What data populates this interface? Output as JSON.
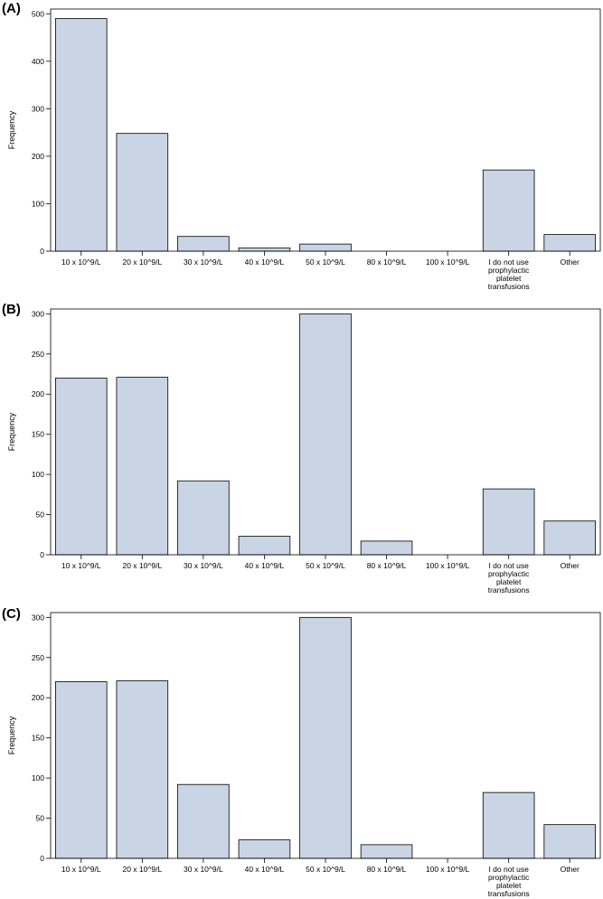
{
  "chart_data": [
    {
      "type": "bar",
      "panel_label": "(A)",
      "ylabel": "Frequency",
      "ylim": [
        0,
        510
      ],
      "yticks": [
        0,
        100,
        200,
        300,
        400,
        500
      ],
      "categories": [
        [
          "10 x 10^9/L"
        ],
        [
          "20 x 10^9/L"
        ],
        [
          "30 x 10^9/L"
        ],
        [
          "40 x 10^9/L"
        ],
        [
          "50 x 10^9/L"
        ],
        [
          "80 x 10^9/L"
        ],
        [
          "100 x 10^9/L"
        ],
        [
          "I do not use",
          "prophylactic",
          "platelet",
          "transfusions"
        ],
        [
          "Other"
        ]
      ],
      "values": [
        490,
        248,
        31,
        7,
        15,
        0,
        0,
        171,
        35
      ]
    },
    {
      "type": "bar",
      "panel_label": "(B)",
      "ylabel": "Frequency",
      "ylim": [
        0,
        306
      ],
      "yticks": [
        0,
        50,
        100,
        150,
        200,
        250,
        300
      ],
      "categories": [
        [
          "10 x 10^9/L"
        ],
        [
          "20 x 10^9/L"
        ],
        [
          "30 x 10^9/L"
        ],
        [
          "40 x 10^9/L"
        ],
        [
          "50 x 10^9/L"
        ],
        [
          "80 x 10^9/L"
        ],
        [
          "100 x 10^9/L"
        ],
        [
          "I do not use",
          "prophylactic",
          "platelet",
          "transfusions"
        ],
        [
          "Other"
        ]
      ],
      "values": [
        220,
        221,
        92,
        23,
        300,
        17,
        0,
        82,
        42
      ]
    },
    {
      "type": "bar",
      "panel_label": "(C)",
      "ylabel": "Frequency",
      "ylim": [
        0,
        306
      ],
      "yticks": [
        0,
        50,
        100,
        150,
        200,
        250,
        300
      ],
      "categories": [
        [
          "10 x 10^9/L"
        ],
        [
          "20 x 10^9/L"
        ],
        [
          "30 x 10^9/L"
        ],
        [
          "40 x 10^9/L"
        ],
        [
          "50 x 10^9/L"
        ],
        [
          "80 x 10^9/L"
        ],
        [
          "100 x 10^9/L"
        ],
        [
          "I do not use",
          "prophylactic",
          "platelet",
          "transfusions"
        ],
        [
          "Other"
        ]
      ],
      "values": [
        220,
        221,
        92,
        23,
        300,
        17,
        0,
        82,
        42
      ]
    }
  ]
}
